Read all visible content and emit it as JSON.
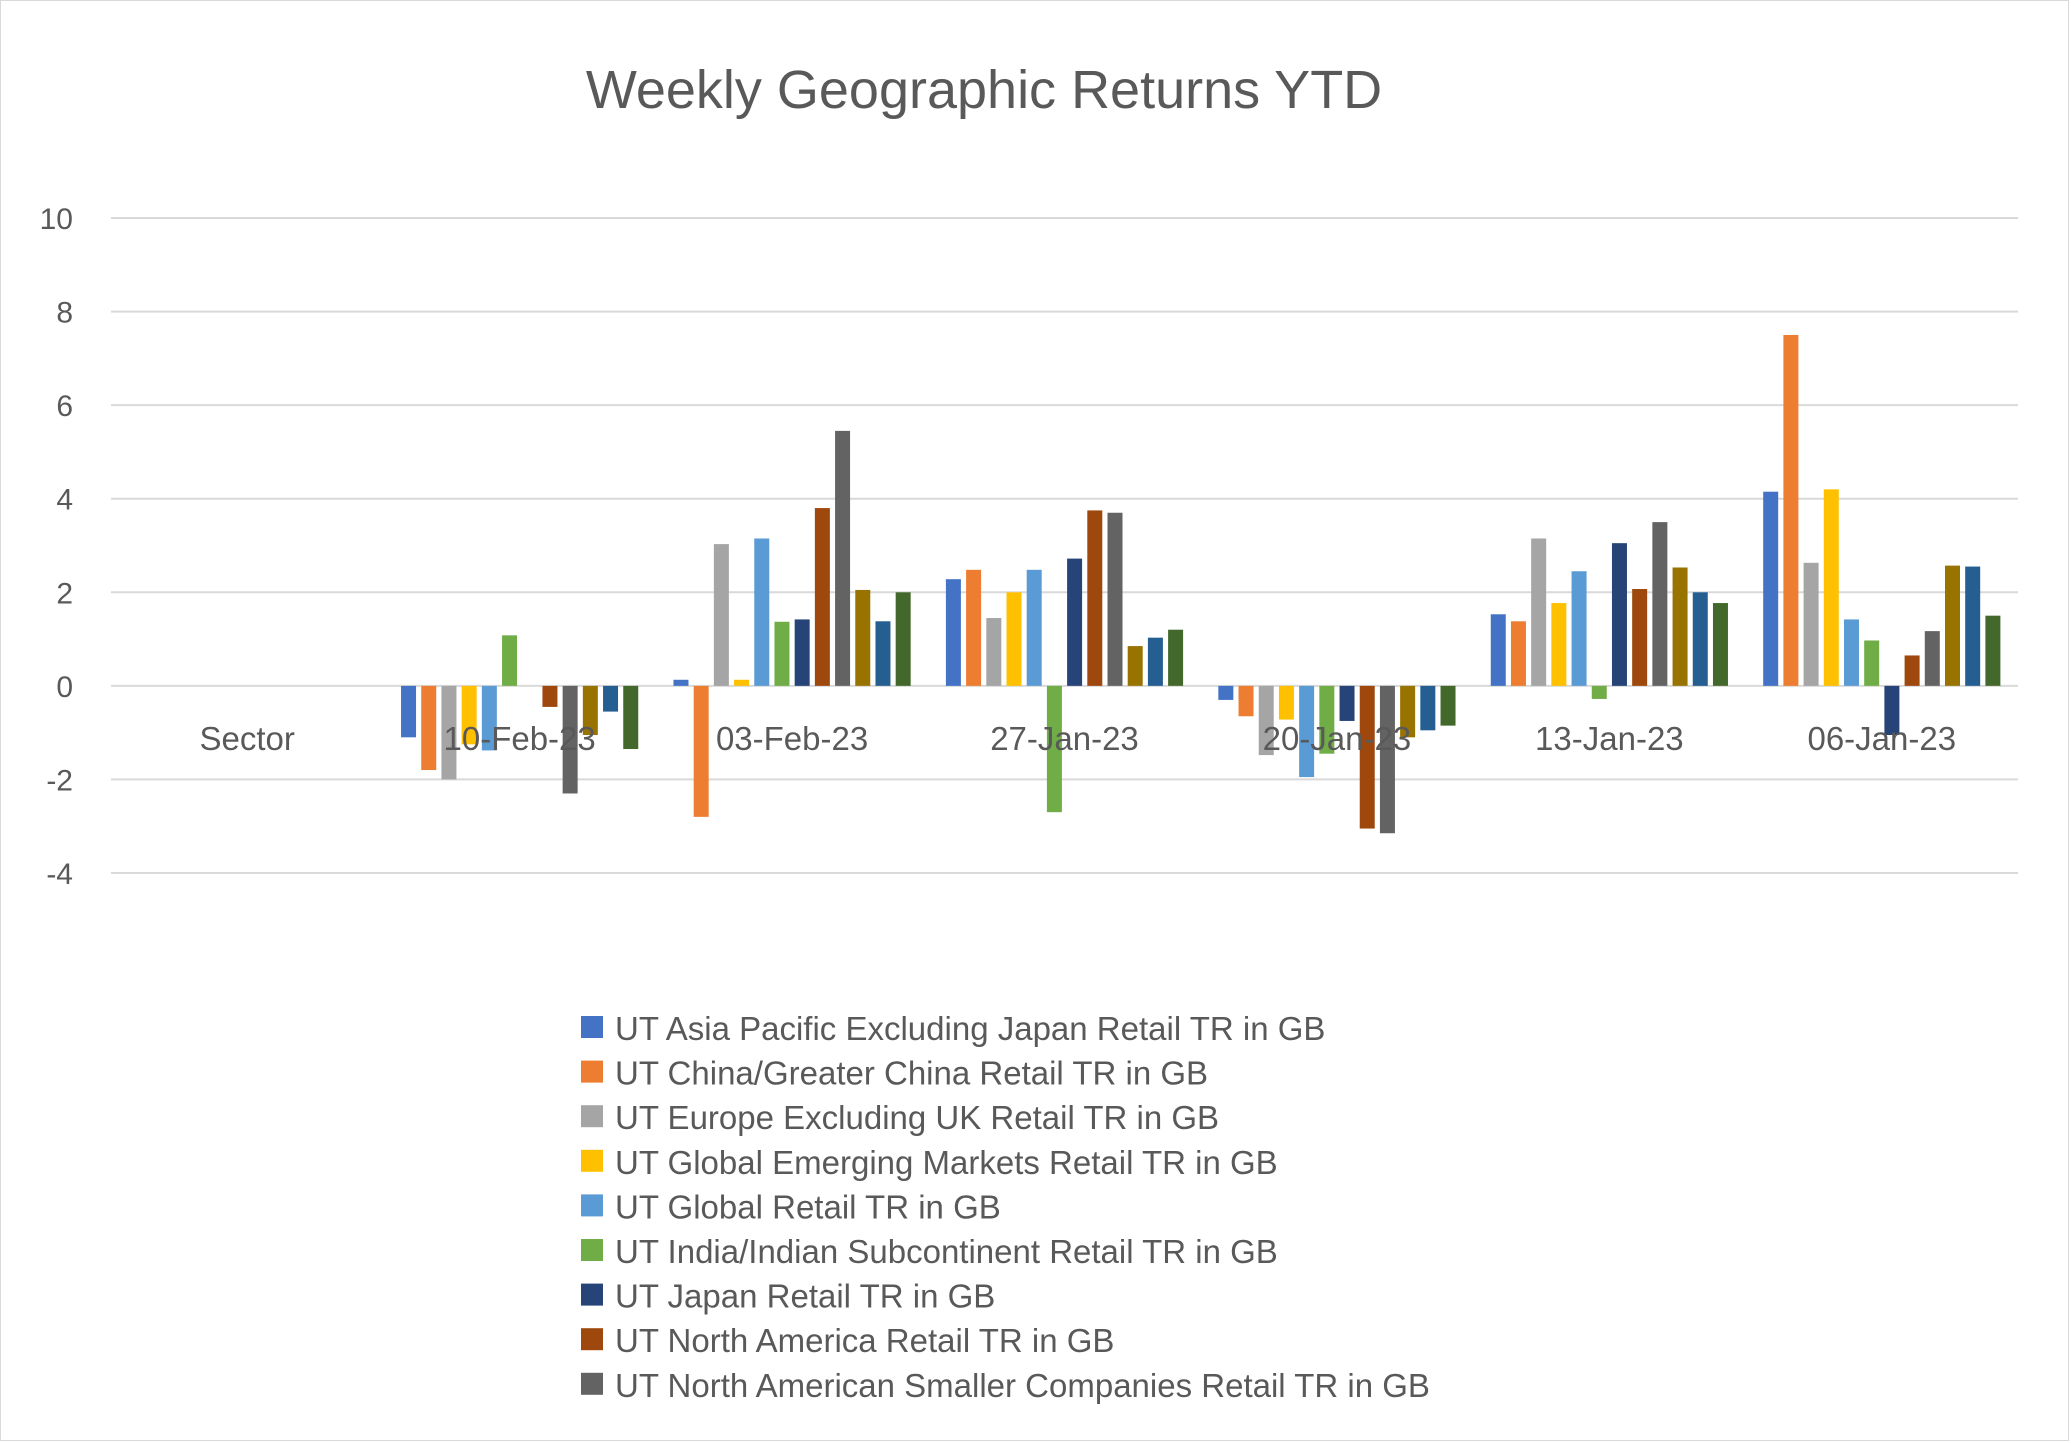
{
  "chart_data": {
    "type": "bar",
    "title": "Weekly Geographic Returns YTD",
    "xlabel": "",
    "ylabel": "",
    "ylim": [
      -4,
      10
    ],
    "yticks": [
      -4,
      -2,
      0,
      2,
      4,
      6,
      8,
      10
    ],
    "grid": true,
    "legend_position": "bottom",
    "categories": [
      "Sector",
      "10-Feb-23",
      "03-Feb-23",
      "27-Jan-23",
      "20-Jan-23",
      "13-Jan-23",
      "06-Jan-23"
    ],
    "series": [
      {
        "name": "UT Asia Pacific Excluding Japan Retail TR in GB",
        "color": "#4472C4",
        "values": [
          null,
          -1.1,
          0.13,
          2.28,
          -0.3,
          1.53,
          4.15
        ]
      },
      {
        "name": "UT China/Greater China Retail TR in GB",
        "color": "#ED7D31",
        "values": [
          null,
          -1.8,
          -2.8,
          2.48,
          -0.65,
          1.38,
          7.5
        ]
      },
      {
        "name": "UT Europe Excluding UK Retail TR in GB",
        "color": "#A5A5A5",
        "values": [
          null,
          -2.0,
          3.03,
          1.45,
          -1.48,
          3.15,
          2.63
        ]
      },
      {
        "name": "UT Global Emerging Markets Retail TR in GB",
        "color": "#FFC000",
        "values": [
          null,
          -1.25,
          0.13,
          2.0,
          -0.72,
          1.77,
          4.2
        ]
      },
      {
        "name": "UT Global Retail TR in GB",
        "color": "#5B9BD5",
        "values": [
          null,
          -1.38,
          3.15,
          2.48,
          -1.95,
          2.45,
          1.42
        ]
      },
      {
        "name": "UT India/Indian Subcontinent Retail TR in GB",
        "color": "#70AD47",
        "values": [
          null,
          1.08,
          1.37,
          -2.7,
          -1.45,
          -0.28,
          0.97
        ]
      },
      {
        "name": "UT Japan Retail TR in GB",
        "color": "#264478",
        "values": [
          null,
          0.0,
          1.42,
          2.72,
          -0.75,
          3.05,
          -1.05
        ]
      },
      {
        "name": "UT North America Retail TR in GB",
        "color": "#9E480E",
        "values": [
          null,
          -0.45,
          3.8,
          3.75,
          -3.05,
          2.07,
          0.65
        ]
      },
      {
        "name": "UT North American Smaller Companies Retail TR in GB",
        "color": "#636363",
        "values": [
          null,
          -2.3,
          5.45,
          3.7,
          -3.15,
          3.5,
          1.17
        ]
      },
      {
        "name": "",
        "color": "#997300",
        "values": [
          null,
          -1.05,
          2.05,
          0.85,
          -1.1,
          2.53,
          2.57
        ]
      },
      {
        "name": "",
        "color": "#255E91",
        "values": [
          null,
          -0.55,
          1.38,
          1.03,
          -0.95,
          2.0,
          2.55
        ]
      },
      {
        "name": "",
        "color": "#43682B",
        "values": [
          null,
          -1.35,
          2.0,
          1.2,
          -0.85,
          1.77,
          1.5
        ]
      }
    ]
  }
}
